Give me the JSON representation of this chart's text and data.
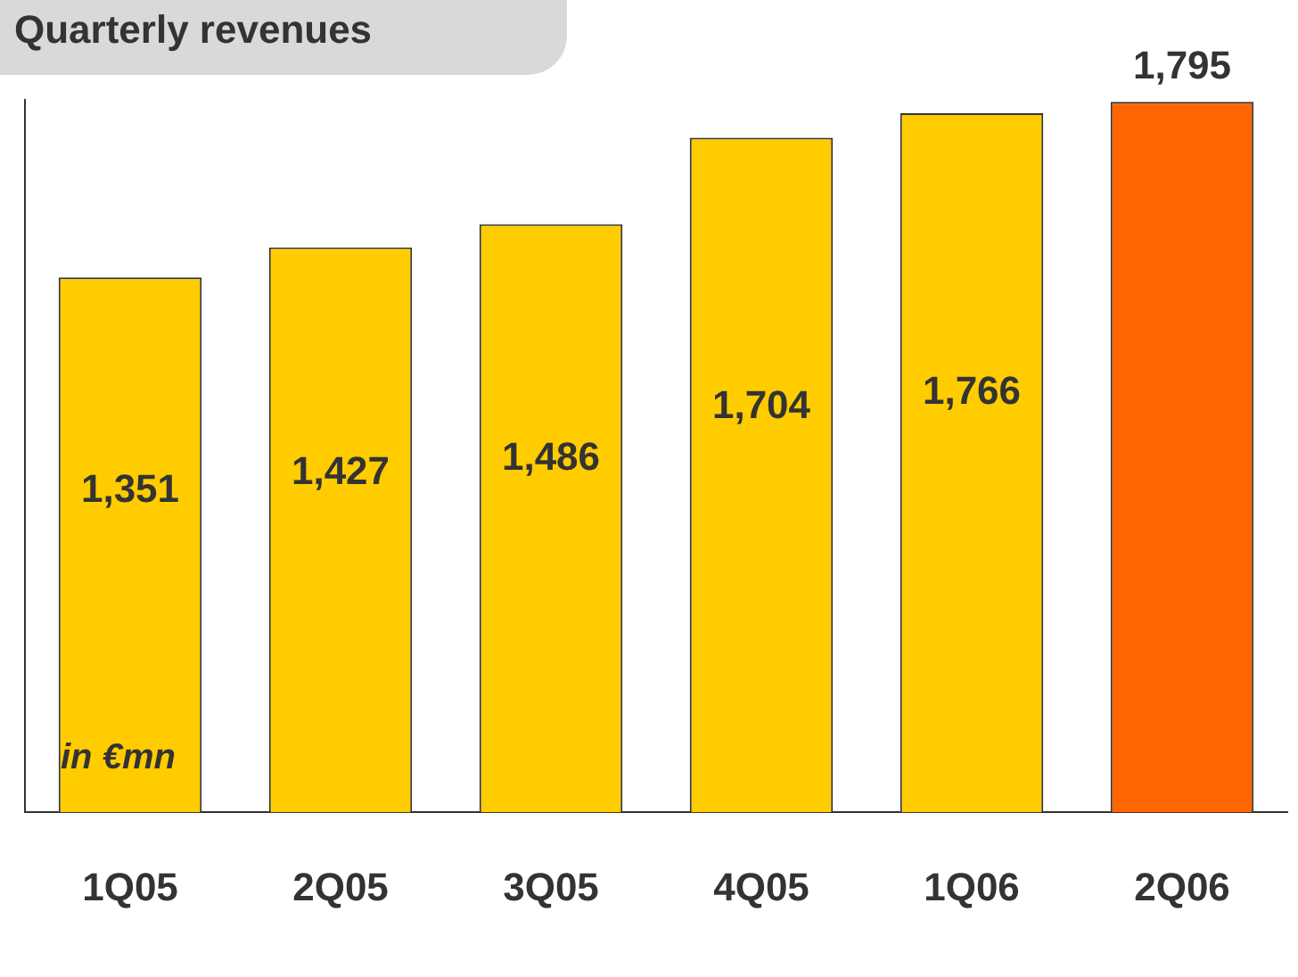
{
  "chart_data": {
    "type": "bar",
    "title": "Quarterly revenues",
    "annotations": [
      "in €mn"
    ],
    "categories": [
      "1Q05",
      "2Q05",
      "3Q05",
      "4Q05",
      "1Q06",
      "2Q06"
    ],
    "values": [
      1351,
      1427,
      1486,
      1704,
      1766,
      1795
    ],
    "colors": [
      "#ffcc00",
      "#ffcc00",
      "#ffcc00",
      "#ffcc00",
      "#ffcc00",
      "#ff6600"
    ],
    "value_labels": [
      "1,351",
      "1,427",
      "1,486",
      "1,704",
      "1,766",
      "1,795"
    ],
    "tick_labels": "x",
    "grid": false,
    "legend": false
  }
}
